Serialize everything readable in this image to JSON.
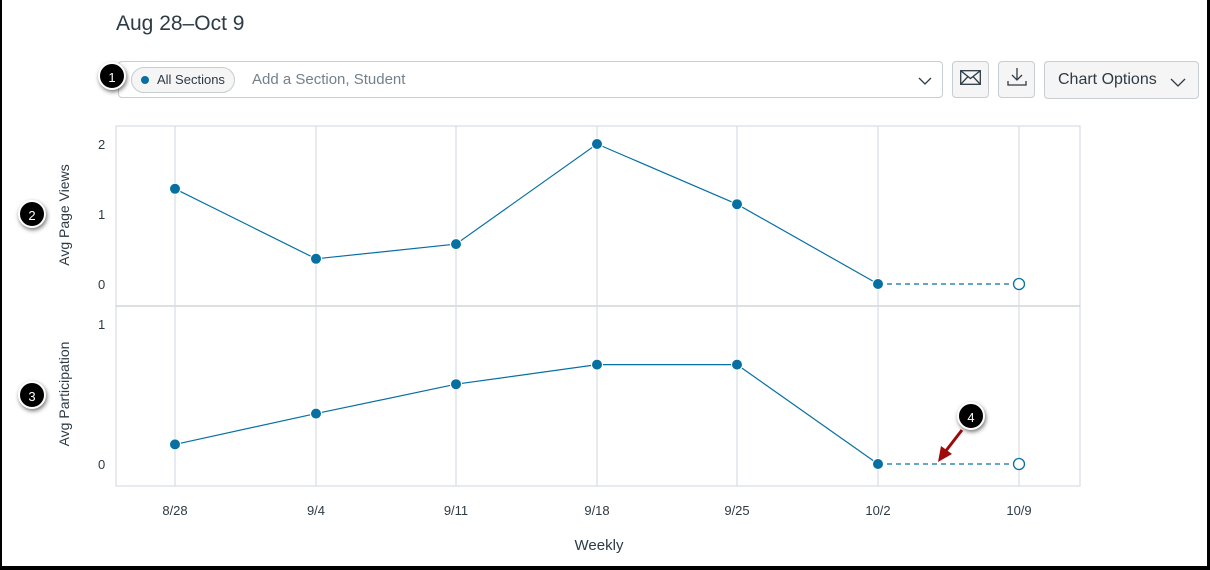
{
  "header": {
    "date_range": "Aug 28–Oct 9"
  },
  "filter": {
    "chip_label": "All Sections",
    "chip_dot_color": "#0770a3",
    "placeholder": "Add a Section, Student",
    "dropdown_icon": "chevron-down-icon"
  },
  "toolbar": {
    "message_icon": "envelope-icon",
    "download_icon": "download-icon",
    "chart_options_label": "Chart Options"
  },
  "callouts": [
    "1",
    "2",
    "3",
    "4"
  ],
  "colors": {
    "series": "#0770a3",
    "grid": "#d7dde3",
    "arrow": "#9e0a0a"
  },
  "chart_data": [
    {
      "type": "line",
      "title": "",
      "ylabel": "Avg Page Views",
      "xlabel": "Weekly",
      "categories": [
        "8/28",
        "9/4",
        "9/11",
        "9/18",
        "9/25",
        "10/2",
        "10/9"
      ],
      "series": [
        {
          "name": "Avg Page Views",
          "values": [
            1.36,
            0.36,
            0.57,
            2.0,
            1.14,
            0,
            0
          ],
          "projected_from_index": 5
        }
      ],
      "yticks": [
        "0",
        "1",
        "2"
      ],
      "ylim": [
        0,
        2.28
      ],
      "grid": true
    },
    {
      "type": "line",
      "title": "",
      "ylabel": "Avg Participation",
      "xlabel": "Weekly",
      "categories": [
        "8/28",
        "9/4",
        "9/11",
        "9/18",
        "9/25",
        "10/2",
        "10/9"
      ],
      "series": [
        {
          "name": "Avg Participation",
          "values": [
            0.14,
            0.36,
            0.57,
            0.71,
            0.71,
            0,
            0
          ],
          "projected_from_index": 5
        }
      ],
      "yticks": [
        "0",
        "1"
      ],
      "ylim": [
        0,
        1.14
      ],
      "grid": true
    }
  ]
}
